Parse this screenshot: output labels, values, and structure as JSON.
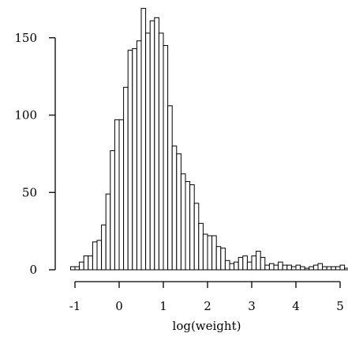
{
  "chart_data": {
    "type": "histogram",
    "title": "",
    "xlabel": "log(weight)",
    "ylabel": "",
    "grid": false,
    "xlim": [
      -1.2,
      5.1
    ],
    "ylim": [
      0,
      170
    ],
    "bin_start": -1.1,
    "bin_width": 0.1,
    "values": [
      2,
      2,
      5,
      9,
      9,
      18,
      19,
      29,
      49,
      77,
      97,
      97,
      118,
      142,
      143,
      148,
      169,
      153,
      161,
      163,
      153,
      145,
      106,
      80,
      75,
      62,
      57,
      55,
      43,
      30,
      23,
      22,
      22,
      15,
      14,
      6,
      4,
      5,
      8,
      9,
      5,
      9,
      12,
      8,
      3,
      4,
      3,
      5,
      3,
      3,
      2,
      3,
      2,
      1,
      2,
      3,
      4,
      2,
      2,
      2,
      2,
      3,
      1,
      2,
      1,
      1,
      0,
      0,
      0,
      1
    ],
    "x_ticks": [
      {
        "value": -1,
        "label": "-1"
      },
      {
        "value": 0,
        "label": "0"
      },
      {
        "value": 1,
        "label": "1"
      },
      {
        "value": 2,
        "label": "2"
      },
      {
        "value": 3,
        "label": "3"
      },
      {
        "value": 4,
        "label": "4"
      },
      {
        "value": 5,
        "label": "5"
      }
    ],
    "y_ticks": [
      {
        "value": 0,
        "label": "0"
      },
      {
        "value": 50,
        "label": "50"
      },
      {
        "value": 100,
        "label": "100"
      },
      {
        "value": 150,
        "label": "150"
      }
    ]
  }
}
